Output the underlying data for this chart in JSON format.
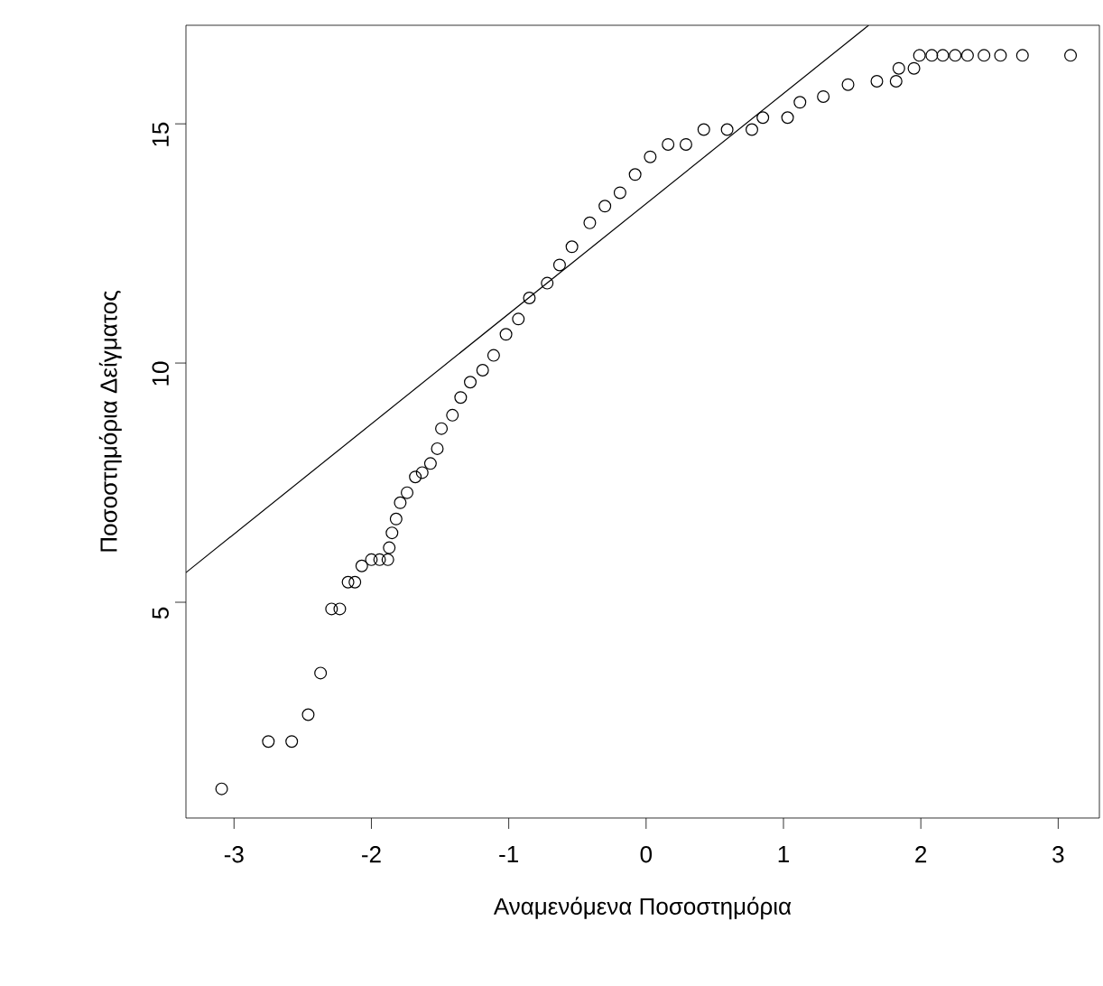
{
  "chart_data": {
    "type": "scatter",
    "xlabel": "Αναμενόμενα Ποσοστημόρια",
    "ylabel": "Ποσοστημόρια Δείγματος",
    "xlim": [
      -3.35,
      3.3
    ],
    "ylim": [
      0.49,
      17.06
    ],
    "xticks": [
      -3,
      -2,
      -1,
      0,
      1,
      2,
      3
    ],
    "yticks": [
      5,
      10,
      15
    ],
    "grid": false,
    "series": [
      {
        "marker": "circle",
        "color": "#000000",
        "x": [
          -3.09,
          -2.75,
          -2.58,
          -2.46,
          -2.37,
          -2.29,
          -2.23,
          -2.17,
          -2.12,
          -2.07,
          -2.0,
          -1.94,
          -1.88,
          -1.87,
          -1.85,
          -1.82,
          -1.79,
          -1.74,
          -1.68,
          -1.63,
          -1.57,
          -1.52,
          -1.49,
          -1.41,
          -1.35,
          -1.28,
          -1.19,
          -1.11,
          -1.02,
          -0.93,
          -0.85,
          -0.72,
          -0.63,
          -0.54,
          -0.41,
          -0.3,
          -0.19,
          -0.08,
          0.03,
          0.16,
          0.29,
          0.42,
          0.59,
          0.77,
          0.85,
          1.03,
          1.12,
          1.29,
          1.47,
          1.68,
          1.82,
          1.84,
          1.95,
          1.99,
          2.08,
          2.16,
          2.25,
          2.34,
          2.46,
          2.58,
          2.74,
          3.09
        ],
        "values": [
          1.1,
          2.09,
          2.09,
          2.65,
          3.52,
          4.86,
          4.86,
          5.42,
          5.42,
          5.76,
          5.89,
          5.89,
          5.89,
          6.14,
          6.45,
          6.74,
          7.08,
          7.29,
          7.62,
          7.71,
          7.9,
          8.21,
          8.63,
          8.91,
          9.28,
          9.6,
          9.85,
          10.16,
          10.6,
          10.92,
          11.36,
          11.67,
          12.05,
          12.43,
          12.93,
          13.28,
          13.56,
          13.94,
          14.31,
          14.57,
          14.57,
          14.88,
          14.88,
          14.88,
          15.13,
          15.13,
          15.45,
          15.57,
          15.82,
          15.89,
          15.89,
          16.16,
          16.16,
          16.43,
          16.43,
          16.43,
          16.43,
          16.43,
          16.43,
          16.43,
          16.43,
          16.43
        ]
      },
      {
        "type": "line",
        "marker": "none",
        "color": "#000000",
        "x": [
          -3.35,
          1.62
        ],
        "values": [
          5.62,
          17.06
        ]
      }
    ]
  }
}
